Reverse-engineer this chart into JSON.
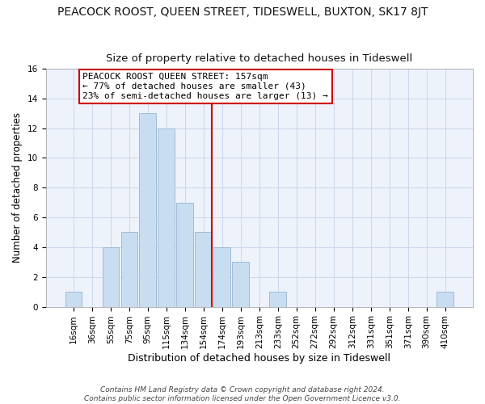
{
  "title": "PEACOCK ROOST, QUEEN STREET, TIDESWELL, BUXTON, SK17 8JT",
  "subtitle": "Size of property relative to detached houses in Tideswell",
  "xlabel": "Distribution of detached houses by size in Tideswell",
  "ylabel": "Number of detached properties",
  "bar_labels": [
    "16sqm",
    "36sqm",
    "55sqm",
    "75sqm",
    "95sqm",
    "115sqm",
    "134sqm",
    "154sqm",
    "174sqm",
    "193sqm",
    "213sqm",
    "233sqm",
    "252sqm",
    "272sqm",
    "292sqm",
    "312sqm",
    "331sqm",
    "351sqm",
    "371sqm",
    "390sqm",
    "410sqm"
  ],
  "bar_values": [
    1,
    0,
    4,
    5,
    13,
    12,
    7,
    5,
    4,
    3,
    0,
    1,
    0,
    0,
    0,
    0,
    0,
    0,
    0,
    0,
    1
  ],
  "bar_color": "#c8ddf0",
  "bar_edge_color": "#a0bcd8",
  "vline_index": 7,
  "vline_color": "#cc0000",
  "ylim": [
    0,
    16
  ],
  "yticks": [
    0,
    2,
    4,
    6,
    8,
    10,
    12,
    14,
    16
  ],
  "annotation_title": "PEACOCK ROOST QUEEN STREET: 157sqm",
  "annotation_line1": "← 77% of detached houses are smaller (43)",
  "annotation_line2": "23% of semi-detached houses are larger (13) →",
  "annotation_box_facecolor": "#ffffff",
  "annotation_box_edgecolor": "#cc0000",
  "bg_color": "#edf2fb",
  "footnote1": "Contains HM Land Registry data © Crown copyright and database right 2024.",
  "footnote2": "Contains public sector information licensed under the Open Government Licence v3.0.",
  "title_fontsize": 10,
  "subtitle_fontsize": 9.5,
  "xlabel_fontsize": 9,
  "ylabel_fontsize": 8.5,
  "tick_fontsize": 7.5,
  "annotation_fontsize": 8,
  "footnote_fontsize": 6.5
}
